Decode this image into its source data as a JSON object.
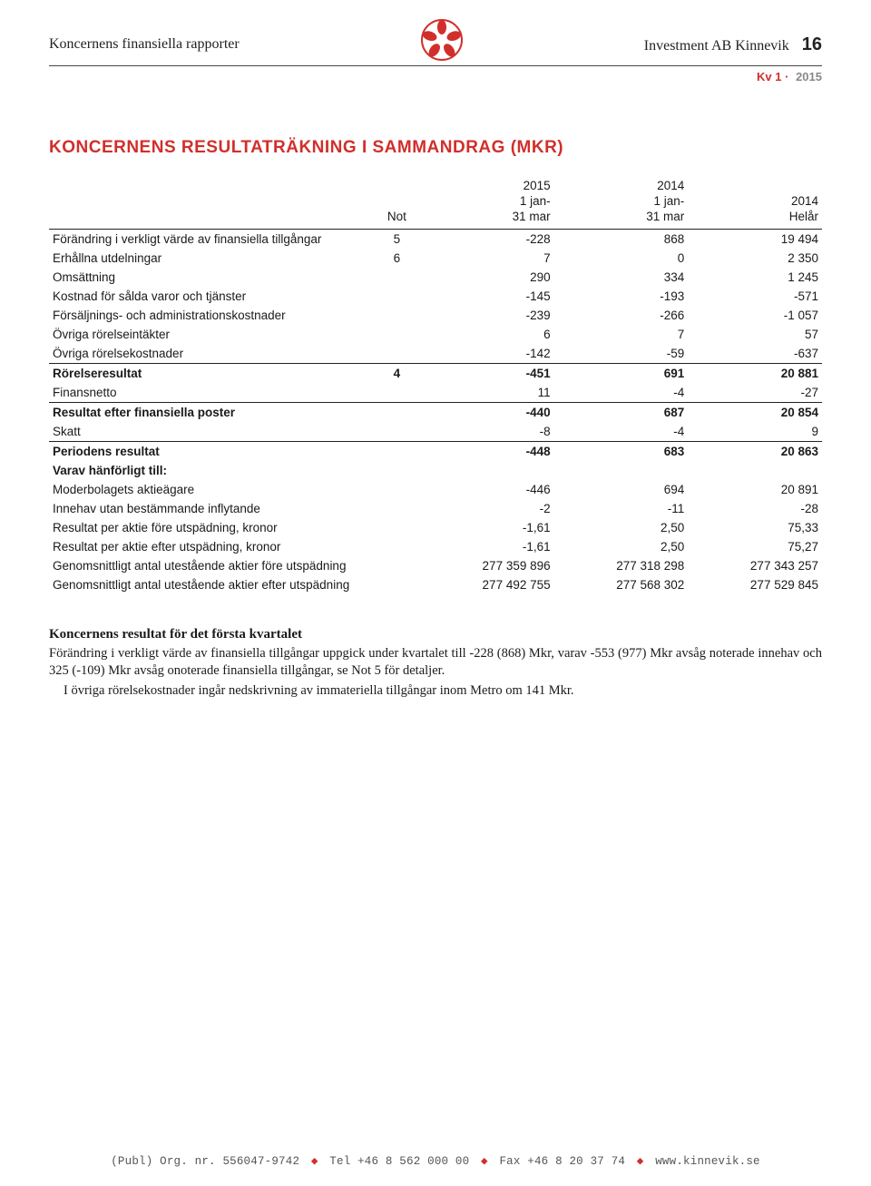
{
  "header": {
    "left": "Koncernens finansiella rapporter",
    "right": "Investment AB Kinnevik",
    "page_num": "16",
    "sub_label": "Kv 1",
    "sub_year": "2015",
    "logo_color": "#d12f2b",
    "rule_color": "#444444"
  },
  "section_title": "KONCERNENS RESULTATRÄKNING I SAMMANDRAG (MKR)",
  "table": {
    "columns": [
      {
        "label": ""
      },
      {
        "label": "Not"
      },
      {
        "label_line1": "2015",
        "label_line2": "1 jan-",
        "label_line3": "31 mar"
      },
      {
        "label_line1": "2014",
        "label_line2": "1 jan-",
        "label_line3": "31 mar"
      },
      {
        "label_line1": "2014",
        "label_line2": "Helår"
      }
    ],
    "rows": [
      {
        "label": "Förändring i verkligt värde av finansiella tillgångar",
        "not": "5",
        "c1": "-228",
        "c2": "868",
        "c3": "19 494"
      },
      {
        "label": "Erhållna utdelningar",
        "not": "6",
        "c1": "7",
        "c2": "0",
        "c3": "2 350"
      },
      {
        "label": "Omsättning",
        "not": "",
        "c1": "290",
        "c2": "334",
        "c3": "1 245"
      },
      {
        "label": "Kostnad för sålda varor och tjänster",
        "not": "",
        "c1": "-145",
        "c2": "-193",
        "c3": "-571"
      },
      {
        "label": "Försäljnings- och administrationskostnader",
        "not": "",
        "c1": "-239",
        "c2": "-266",
        "c3": "-1 057"
      },
      {
        "label": "Övriga rörelseintäkter",
        "not": "",
        "c1": "6",
        "c2": "7",
        "c3": "57"
      },
      {
        "label": "Övriga rörelsekostnader",
        "not": "",
        "c1": "-142",
        "c2": "-59",
        "c3": "-637"
      },
      {
        "label": "Rörelseresultat",
        "not": "4",
        "c1": "-451",
        "c2": "691",
        "c3": "20 881",
        "bold": true,
        "rule": true
      },
      {
        "label": "Finansnetto",
        "not": "",
        "c1": "11",
        "c2": "-4",
        "c3": "-27"
      },
      {
        "label": "Resultat efter finansiella poster",
        "not": "",
        "c1": "-440",
        "c2": "687",
        "c3": "20 854",
        "bold": true,
        "rule": true
      },
      {
        "label": "Skatt",
        "not": "",
        "c1": "-8",
        "c2": "-4",
        "c3": "9"
      },
      {
        "label": "Periodens resultat",
        "not": "",
        "c1": "-448",
        "c2": "683",
        "c3": "20 863",
        "bold": true,
        "rule": true
      },
      {
        "label": "Varav hänförligt till:",
        "not": "",
        "c1": "",
        "c2": "",
        "c3": "",
        "bold_label": true
      },
      {
        "label": "Moderbolagets aktieägare",
        "not": "",
        "c1": "-446",
        "c2": "694",
        "c3": "20 891"
      },
      {
        "label": "Innehav utan bestämmande inflytande",
        "not": "",
        "c1": "-2",
        "c2": "-11",
        "c3": "-28"
      },
      {
        "label": "Resultat per aktie före utspädning, kronor",
        "not": "",
        "c1": "-1,61",
        "c2": "2,50",
        "c3": "75,33"
      },
      {
        "label": "Resultat per aktie efter utspädning, kronor",
        "not": "",
        "c1": "-1,61",
        "c2": "2,50",
        "c3": "75,27"
      },
      {
        "label": "Genomsnittligt antal utestående aktier före utspädning",
        "not": "",
        "c1": "277 359 896",
        "c2": "277 318 298",
        "c3": "277 343 257"
      },
      {
        "label": "Genomsnittligt antal utestående aktier efter utspädning",
        "not": "",
        "c1": "277 492 755",
        "c2": "277 568 302",
        "c3": "277 529 845"
      }
    ]
  },
  "body": {
    "heading": "Koncernens resultat för det första kvartalet",
    "p1": "Förändring i verkligt värde av finansiella tillgångar uppgick under kvartalet till -228 (868) Mkr, varav -553 (977) Mkr avsåg noterade innehav och 325 (-109) Mkr avsåg onoterade finansiella tillgångar, se Not 5 för detaljer.",
    "p2": "I övriga rörelsekostnader ingår nedskrivning av immateriella tillgångar inom Metro om 141 Mkr."
  },
  "footer": {
    "org_prefix": "(Publ) Org. nr. 556047-9742",
    "tel": "Tel +46 8 562 000 00",
    "fax": "Fax +46 8 20 37 74",
    "url": "www.kinnevik.se",
    "diamond_color": "#d12f2b"
  }
}
